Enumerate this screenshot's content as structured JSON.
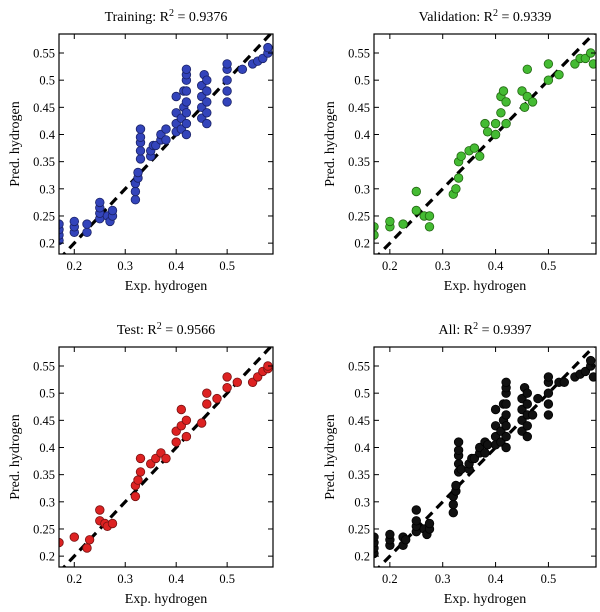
{
  "chart_data": [
    {
      "type": "scatter",
      "title": "Training: R² = 0.9376",
      "title_prefix": "Training: R",
      "title_sup": "2",
      "title_suffix": " = 0.9376",
      "xlabel": "Exp. hydrogen",
      "ylabel": "Pred. hydrogen",
      "xlim": [
        0.17,
        0.59
      ],
      "ylim": [
        0.18,
        0.585
      ],
      "xticks": [
        0.2,
        0.3,
        0.4,
        0.5
      ],
      "xtick_labels": [
        "0.2",
        "0.3",
        "0.4",
        "0.5"
      ],
      "yticks": [
        0.2,
        0.25,
        0.3,
        0.35,
        0.4,
        0.45,
        0.5,
        0.55
      ],
      "ytick_labels": [
        "0.2",
        "0.25",
        "0.3",
        "0.35",
        "0.4",
        "0.45",
        "0.5",
        "0.55"
      ],
      "marker_color": "#3344bb",
      "marker_edge": "#1a2266",
      "x": [
        0.17,
        0.17,
        0.17,
        0.17,
        0.2,
        0.2,
        0.2,
        0.225,
        0.225,
        0.25,
        0.25,
        0.25,
        0.25,
        0.265,
        0.27,
        0.275,
        0.275,
        0.32,
        0.32,
        0.32,
        0.325,
        0.325,
        0.33,
        0.33,
        0.33,
        0.33,
        0.33,
        0.35,
        0.35,
        0.355,
        0.36,
        0.37,
        0.37,
        0.38,
        0.38,
        0.4,
        0.4,
        0.4,
        0.4,
        0.41,
        0.41,
        0.415,
        0.415,
        0.42,
        0.42,
        0.42,
        0.42,
        0.42,
        0.42,
        0.42,
        0.42,
        0.45,
        0.45,
        0.45,
        0.45,
        0.455,
        0.46,
        0.46,
        0.46,
        0.46,
        0.46,
        0.5,
        0.5,
        0.5,
        0.5,
        0.5,
        0.53,
        0.55,
        0.56,
        0.57,
        0.58,
        0.58
      ],
      "y": [
        0.205,
        0.215,
        0.225,
        0.235,
        0.22,
        0.23,
        0.24,
        0.22,
        0.235,
        0.245,
        0.255,
        0.265,
        0.275,
        0.25,
        0.24,
        0.25,
        0.26,
        0.28,
        0.295,
        0.31,
        0.32,
        0.33,
        0.355,
        0.37,
        0.385,
        0.395,
        0.41,
        0.36,
        0.37,
        0.38,
        0.38,
        0.39,
        0.4,
        0.39,
        0.41,
        0.405,
        0.42,
        0.44,
        0.47,
        0.41,
        0.43,
        0.45,
        0.48,
        0.4,
        0.42,
        0.44,
        0.46,
        0.48,
        0.5,
        0.51,
        0.52,
        0.43,
        0.45,
        0.47,
        0.49,
        0.51,
        0.42,
        0.44,
        0.46,
        0.48,
        0.5,
        0.46,
        0.48,
        0.5,
        0.52,
        0.53,
        0.52,
        0.53,
        0.535,
        0.54,
        0.55,
        0.56
      ]
    },
    {
      "type": "scatter",
      "title": "Validation: R² = 0.9339",
      "title_prefix": "Validation: R",
      "title_sup": "2",
      "title_suffix": " = 0.9339",
      "xlabel": "Exp. hydrogen",
      "ylabel": "Pred. hydrogen",
      "xlim": [
        0.17,
        0.59
      ],
      "ylim": [
        0.18,
        0.585
      ],
      "xticks": [
        0.2,
        0.3,
        0.4,
        0.5
      ],
      "xtick_labels": [
        "0.2",
        "0.3",
        "0.4",
        "0.5"
      ],
      "yticks": [
        0.2,
        0.25,
        0.3,
        0.35,
        0.4,
        0.45,
        0.5,
        0.55
      ],
      "ytick_labels": [
        "0.2",
        "0.25",
        "0.3",
        "0.35",
        "0.4",
        "0.45",
        "0.5",
        "0.55"
      ],
      "marker_color": "#44bb33",
      "marker_edge": "#226611",
      "x": [
        0.17,
        0.17,
        0.2,
        0.2,
        0.225,
        0.25,
        0.25,
        0.265,
        0.275,
        0.275,
        0.32,
        0.325,
        0.33,
        0.33,
        0.335,
        0.35,
        0.36,
        0.37,
        0.38,
        0.385,
        0.4,
        0.4,
        0.41,
        0.41,
        0.415,
        0.42,
        0.42,
        0.45,
        0.455,
        0.46,
        0.46,
        0.47,
        0.5,
        0.5,
        0.52,
        0.55,
        0.56,
        0.57,
        0.58,
        0.585
      ],
      "y": [
        0.215,
        0.23,
        0.23,
        0.24,
        0.235,
        0.26,
        0.295,
        0.25,
        0.23,
        0.25,
        0.29,
        0.3,
        0.32,
        0.35,
        0.36,
        0.37,
        0.375,
        0.36,
        0.42,
        0.405,
        0.42,
        0.4,
        0.44,
        0.47,
        0.48,
        0.42,
        0.46,
        0.48,
        0.45,
        0.47,
        0.52,
        0.46,
        0.5,
        0.53,
        0.51,
        0.53,
        0.54,
        0.54,
        0.55,
        0.53
      ]
    },
    {
      "type": "scatter",
      "title": "Test: R² = 0.9566",
      "title_prefix": "Test: R",
      "title_sup": "2",
      "title_suffix": " = 0.9566",
      "xlabel": "Exp. hydrogen",
      "ylabel": "Pred. hydrogen",
      "xlim": [
        0.17,
        0.59
      ],
      "ylim": [
        0.18,
        0.585
      ],
      "xticks": [
        0.2,
        0.3,
        0.4,
        0.5
      ],
      "xtick_labels": [
        "0.2",
        "0.3",
        "0.4",
        "0.5"
      ],
      "yticks": [
        0.2,
        0.25,
        0.3,
        0.35,
        0.4,
        0.45,
        0.5,
        0.55
      ],
      "ytick_labels": [
        "0.2",
        "0.25",
        "0.3",
        "0.35",
        "0.4",
        "0.45",
        "0.5",
        "0.55"
      ],
      "marker_color": "#dd2222",
      "marker_edge": "#771111",
      "x": [
        0.17,
        0.2,
        0.225,
        0.23,
        0.25,
        0.25,
        0.26,
        0.265,
        0.275,
        0.32,
        0.32,
        0.325,
        0.33,
        0.33,
        0.35,
        0.36,
        0.37,
        0.38,
        0.4,
        0.4,
        0.41,
        0.41,
        0.42,
        0.42,
        0.45,
        0.46,
        0.46,
        0.48,
        0.5,
        0.5,
        0.52,
        0.55,
        0.56,
        0.57,
        0.58,
        0.58
      ],
      "y": [
        0.225,
        0.235,
        0.215,
        0.23,
        0.265,
        0.285,
        0.26,
        0.255,
        0.26,
        0.31,
        0.33,
        0.34,
        0.355,
        0.38,
        0.37,
        0.38,
        0.39,
        0.38,
        0.41,
        0.43,
        0.44,
        0.47,
        0.42,
        0.45,
        0.445,
        0.48,
        0.5,
        0.49,
        0.51,
        0.53,
        0.52,
        0.52,
        0.53,
        0.54,
        0.545,
        0.55
      ]
    },
    {
      "type": "scatter",
      "title": "All: R² = 0.9397",
      "title_prefix": "All: R",
      "title_sup": "2",
      "title_suffix": " = 0.9397",
      "xlabel": "Exp. hydrogen",
      "ylabel": "Pred. hydrogen",
      "xlim": [
        0.17,
        0.59
      ],
      "ylim": [
        0.18,
        0.585
      ],
      "xticks": [
        0.2,
        0.3,
        0.4,
        0.5
      ],
      "xtick_labels": [
        "0.2",
        "0.3",
        "0.4",
        "0.5"
      ],
      "yticks": [
        0.2,
        0.25,
        0.3,
        0.35,
        0.4,
        0.45,
        0.5,
        0.55
      ],
      "ytick_labels": [
        "0.2",
        "0.25",
        "0.3",
        "0.35",
        "0.4",
        "0.45",
        "0.5",
        "0.55"
      ],
      "marker_color": "#111111",
      "marker_edge": "#000000",
      "x": [
        0.17,
        0.17,
        0.17,
        0.17,
        0.2,
        0.2,
        0.2,
        0.225,
        0.225,
        0.23,
        0.25,
        0.25,
        0.25,
        0.25,
        0.265,
        0.27,
        0.275,
        0.275,
        0.32,
        0.32,
        0.32,
        0.325,
        0.325,
        0.33,
        0.33,
        0.33,
        0.33,
        0.33,
        0.335,
        0.35,
        0.35,
        0.355,
        0.36,
        0.37,
        0.37,
        0.38,
        0.38,
        0.385,
        0.4,
        0.4,
        0.4,
        0.4,
        0.41,
        0.41,
        0.415,
        0.415,
        0.42,
        0.42,
        0.42,
        0.42,
        0.42,
        0.42,
        0.42,
        0.42,
        0.45,
        0.45,
        0.45,
        0.45,
        0.455,
        0.46,
        0.46,
        0.46,
        0.46,
        0.46,
        0.47,
        0.48,
        0.5,
        0.5,
        0.5,
        0.5,
        0.5,
        0.52,
        0.53,
        0.55,
        0.56,
        0.57,
        0.58,
        0.58,
        0.585
      ],
      "y": [
        0.205,
        0.215,
        0.225,
        0.235,
        0.22,
        0.23,
        0.24,
        0.22,
        0.235,
        0.23,
        0.245,
        0.255,
        0.265,
        0.285,
        0.25,
        0.24,
        0.25,
        0.26,
        0.28,
        0.295,
        0.31,
        0.32,
        0.33,
        0.355,
        0.37,
        0.385,
        0.395,
        0.41,
        0.36,
        0.36,
        0.37,
        0.38,
        0.38,
        0.39,
        0.4,
        0.39,
        0.41,
        0.405,
        0.405,
        0.42,
        0.44,
        0.47,
        0.41,
        0.43,
        0.45,
        0.48,
        0.4,
        0.42,
        0.44,
        0.46,
        0.48,
        0.5,
        0.51,
        0.52,
        0.43,
        0.45,
        0.47,
        0.49,
        0.51,
        0.42,
        0.44,
        0.46,
        0.48,
        0.5,
        0.46,
        0.49,
        0.46,
        0.48,
        0.5,
        0.52,
        0.53,
        0.52,
        0.52,
        0.53,
        0.535,
        0.54,
        0.55,
        0.56,
        0.53
      ]
    }
  ]
}
